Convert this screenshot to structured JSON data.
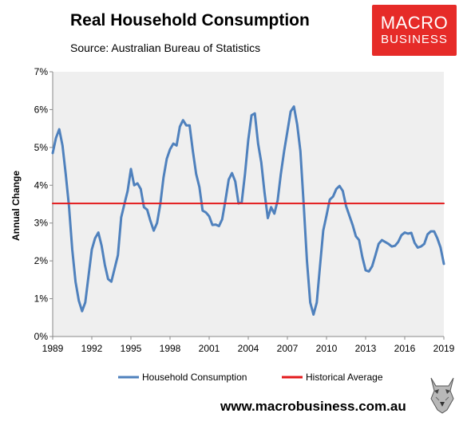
{
  "header": {
    "title": "Real Household Consumption",
    "subtitle": "Source: Australian Bureau of Statistics"
  },
  "logo": {
    "line1": "MACRO",
    "line2": "BUSINESS",
    "background": "#e62b28"
  },
  "footer": {
    "website": "www.macrobusiness.com.au"
  },
  "chart_data": {
    "type": "line",
    "title": "Real Household Consumption",
    "subtitle": "Source: Australian Bureau of Statistics",
    "xlabel": "",
    "ylabel": "Annual Change",
    "xlim": [
      1989,
      2019
    ],
    "ylim": [
      0,
      7
    ],
    "x_ticks": [
      "1989",
      "1992",
      "1995",
      "1998",
      "2001",
      "2004",
      "2007",
      "2010",
      "2013",
      "2016",
      "2019"
    ],
    "y_ticks": [
      "0%",
      "1%",
      "2%",
      "3%",
      "4%",
      "5%",
      "6%",
      "7%"
    ],
    "grid": false,
    "plot_background": "#efefef",
    "legend_position": "bottom",
    "series": [
      {
        "name": "Household Consumption",
        "color": "#4f81bd",
        "x": [
          1989.0,
          1989.25,
          1989.5,
          1989.75,
          1990.0,
          1990.25,
          1990.5,
          1990.75,
          1991.0,
          1991.25,
          1991.5,
          1991.75,
          1992.0,
          1992.25,
          1992.5,
          1992.75,
          1993.0,
          1993.25,
          1993.5,
          1993.75,
          1994.0,
          1994.25,
          1994.5,
          1994.75,
          1995.0,
          1995.25,
          1995.5,
          1995.75,
          1996.0,
          1996.25,
          1996.5,
          1996.75,
          1997.0,
          1997.25,
          1997.5,
          1997.75,
          1998.0,
          1998.25,
          1998.5,
          1998.75,
          1999.0,
          1999.25,
          1999.5,
          1999.75,
          2000.0,
          2000.25,
          2000.5,
          2000.75,
          2001.0,
          2001.25,
          2001.5,
          2001.75,
          2002.0,
          2002.25,
          2002.5,
          2002.75,
          2003.0,
          2003.25,
          2003.5,
          2003.75,
          2004.0,
          2004.25,
          2004.5,
          2004.75,
          2005.0,
          2005.25,
          2005.5,
          2005.75,
          2006.0,
          2006.25,
          2006.5,
          2006.75,
          2007.0,
          2007.25,
          2007.5,
          2007.75,
          2008.0,
          2008.25,
          2008.5,
          2008.75,
          2009.0,
          2009.25,
          2009.5,
          2009.75,
          2010.0,
          2010.25,
          2010.5,
          2010.75,
          2011.0,
          2011.25,
          2011.5,
          2011.75,
          2012.0,
          2012.25,
          2012.5,
          2012.75,
          2013.0,
          2013.25,
          2013.5,
          2013.75,
          2014.0,
          2014.25,
          2014.5,
          2014.75,
          2015.0,
          2015.25,
          2015.5,
          2015.75,
          2016.0,
          2016.25,
          2016.5,
          2016.75,
          2017.0,
          2017.25,
          2017.5,
          2017.75,
          2018.0,
          2018.25,
          2018.5,
          2018.75,
          2019.0
        ],
        "values": [
          4.85,
          5.25,
          5.48,
          5.05,
          4.3,
          3.45,
          2.3,
          1.45,
          0.95,
          0.67,
          0.9,
          1.6,
          2.3,
          2.6,
          2.75,
          2.4,
          1.9,
          1.52,
          1.45,
          1.8,
          2.15,
          3.15,
          3.5,
          3.85,
          4.43,
          4.0,
          4.05,
          3.9,
          3.42,
          3.35,
          3.05,
          2.8,
          3.0,
          3.5,
          4.2,
          4.7,
          4.95,
          5.1,
          5.05,
          5.55,
          5.72,
          5.58,
          5.58,
          4.9,
          4.3,
          3.95,
          3.33,
          3.28,
          3.18,
          2.95,
          2.96,
          2.92,
          3.1,
          3.6,
          4.15,
          4.32,
          4.1,
          3.52,
          3.55,
          4.3,
          5.2,
          5.85,
          5.9,
          5.1,
          4.6,
          3.8,
          3.13,
          3.42,
          3.25,
          3.6,
          4.3,
          4.9,
          5.42,
          5.95,
          6.08,
          5.6,
          4.9,
          3.5,
          2.0,
          0.9,
          0.58,
          0.9,
          1.85,
          2.8,
          3.2,
          3.62,
          3.7,
          3.9,
          3.98,
          3.85,
          3.45,
          3.2,
          2.95,
          2.65,
          2.55,
          2.1,
          1.75,
          1.72,
          1.86,
          2.15,
          2.45,
          2.55,
          2.5,
          2.45,
          2.38,
          2.4,
          2.5,
          2.68,
          2.75,
          2.72,
          2.74,
          2.48,
          2.35,
          2.38,
          2.45,
          2.7,
          2.78,
          2.78,
          2.6,
          2.35,
          1.92
        ]
      },
      {
        "name": "Historical Average",
        "color": "#e31a1c",
        "x": [
          1989,
          2019
        ],
        "values": [
          3.52,
          3.52
        ]
      }
    ]
  }
}
